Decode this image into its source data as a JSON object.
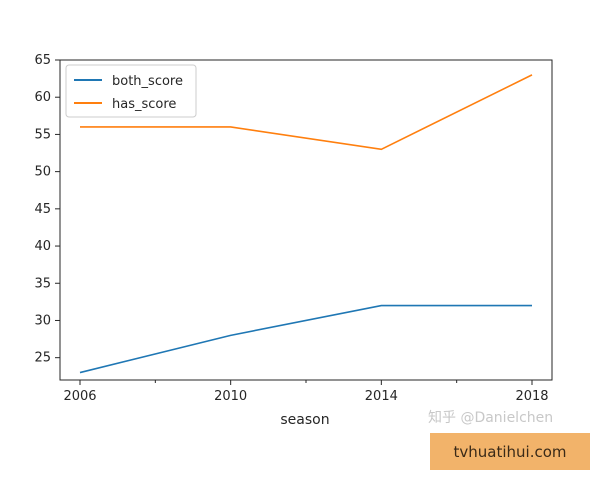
{
  "chart_data": {
    "type": "line",
    "x": [
      2006,
      2010,
      2014,
      2018
    ],
    "xticks": [
      "2006",
      "2010",
      "2014",
      "2018"
    ],
    "series": [
      {
        "name": "both_score",
        "values": [
          23,
          28,
          32,
          32
        ],
        "color": "#1f77b4"
      },
      {
        "name": "has_score",
        "values": [
          56,
          56,
          53,
          63
        ],
        "color": "#ff7f0e"
      }
    ],
    "xlabel": "season",
    "ylabel": "",
    "xlim": [
      2006,
      2018
    ],
    "ylim": [
      22,
      65
    ],
    "yticks": [
      25,
      30,
      35,
      40,
      45,
      50,
      55,
      60,
      65
    ],
    "grid": false,
    "legend_position": "top-left"
  },
  "watermark": {
    "text": "知乎 @Danielchen",
    "site": "tvhuatihui.com"
  }
}
